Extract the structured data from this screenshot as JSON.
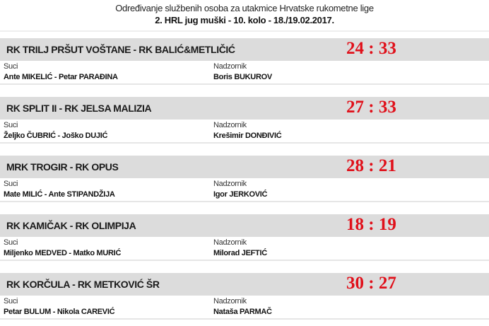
{
  "header": {
    "title": "Određivanje službenih osoba za utakmice Hrvatske rukometne lige",
    "subtitle": "2. HRL jug muški - 10. kolo - 18./19.02.2017."
  },
  "labels": {
    "referees": "Suci",
    "supervisor": "Nadzornik"
  },
  "score_color": "#e0101a",
  "matches": [
    {
      "teams": "RK TRILJ PRŠUT VOŠTANE - RK BALIĆ&METLIČIĆ",
      "score": "24 : 33",
      "referees": "Ante MIKELIĆ - Petar PARAĐINA",
      "supervisor": "Boris BUKUROV"
    },
    {
      "teams": "RK SPLIT II - RK JELSA MALIZIA",
      "score": "27 : 33",
      "referees": "Željko ČUBRIĆ - Joško DUJIĆ",
      "supervisor": "Krešimir DONĐIVIĆ"
    },
    {
      "teams": "MRK TROGIR - RK OPUS",
      "score": "28 : 21",
      "referees": "Mate MILIĆ - Ante STIPANDŽIJA",
      "supervisor": "Igor JERKOVIĆ"
    },
    {
      "teams": "RK KAMIČAK - RK OLIMPIJA",
      "score": "18 : 19",
      "referees": "Miljenko MEDVED - Matko MURIĆ",
      "supervisor": "Milorad JEFTIĆ"
    },
    {
      "teams": "RK KORČULA - RK METKOVIĆ ŠR",
      "score": "30 : 27",
      "referees": "Petar BULUM - Nikola CAREVIĆ",
      "supervisor": "Nataša PARMAČ"
    }
  ]
}
